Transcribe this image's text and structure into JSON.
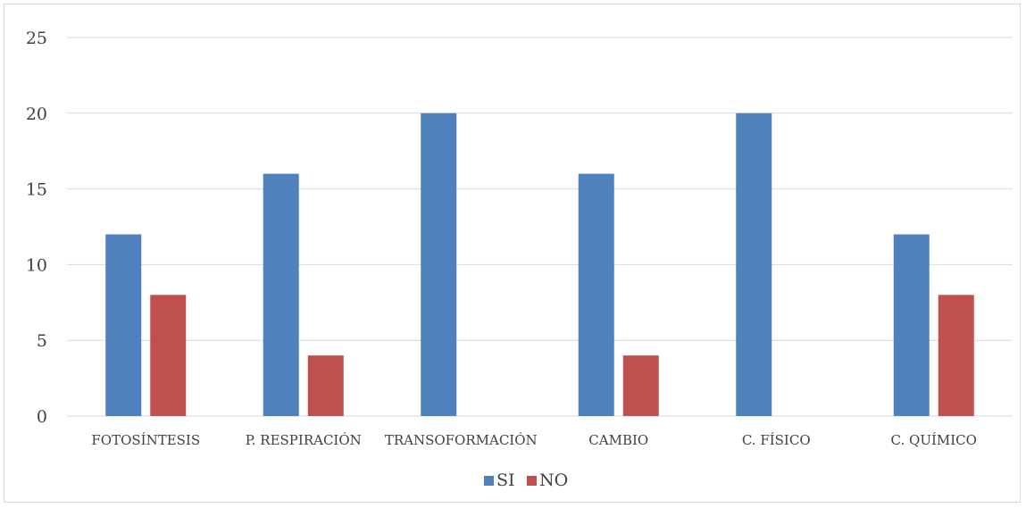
{
  "chart_data": {
    "type": "bar",
    "title": "",
    "xlabel": "",
    "ylabel": "",
    "categories": [
      "FOTOSÍNTESIS",
      "P. RESPIRACIÓN",
      "TRANSOFORMACIÓN",
      "CAMBIO",
      "C. FÍSICO",
      "C. QUÍMICO"
    ],
    "series": [
      {
        "name": "SI",
        "values": [
          12,
          16,
          20,
          16,
          20,
          12
        ],
        "color": "#4f81bd"
      },
      {
        "name": "NO",
        "values": [
          8,
          4,
          0,
          4,
          0,
          8
        ],
        "color": "#c0504d"
      }
    ],
    "ylim": [
      0,
      25
    ],
    "yticks": [
      0,
      5,
      10,
      15,
      20,
      25
    ],
    "grid": true,
    "legend_position": "bottom"
  }
}
